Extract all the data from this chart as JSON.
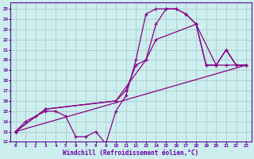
{
  "xlabel": "Windchill (Refroidissement éolien,°C)",
  "bg_color": "#cceeee",
  "line_color": "#880088",
  "grid_color": "#aacccc",
  "spine_color": "#6600aa",
  "xlim": [
    -0.5,
    23.5
  ],
  "ylim": [
    12,
    25.6
  ],
  "xticks": [
    0,
    1,
    2,
    3,
    4,
    5,
    6,
    7,
    8,
    9,
    10,
    11,
    12,
    13,
    14,
    15,
    16,
    17,
    18,
    19,
    20,
    21,
    22,
    23
  ],
  "yticks": [
    12,
    13,
    14,
    15,
    16,
    17,
    18,
    19,
    20,
    21,
    22,
    23,
    24,
    25
  ],
  "lines": [
    {
      "x": [
        0,
        1,
        2,
        3,
        4,
        5,
        6,
        7,
        8,
        9,
        10,
        11,
        12,
        13,
        14,
        15,
        16,
        17,
        18,
        19,
        20,
        21,
        22,
        23
      ],
      "y": [
        13,
        14,
        14.5,
        15,
        15,
        14.5,
        12.5,
        12.5,
        13,
        11.8,
        15,
        16.5,
        20,
        24.5,
        25,
        25,
        25,
        24.5,
        23.5,
        19.5,
        19.5,
        19.5,
        19.5,
        19.5
      ]
    },
    {
      "x": [
        0,
        3,
        10,
        11,
        12,
        13,
        14,
        15,
        16,
        17,
        18,
        19,
        20,
        21,
        22,
        23
      ],
      "y": [
        13,
        15.2,
        16,
        17,
        19.5,
        20,
        23.5,
        25,
        25,
        24.5,
        23.5,
        19.5,
        19.5,
        21,
        19.5,
        19.5
      ]
    },
    {
      "x": [
        0,
        3,
        10,
        13,
        14,
        18,
        20,
        21,
        22,
        23
      ],
      "y": [
        13,
        15.2,
        16,
        20,
        22,
        23.5,
        19.5,
        21,
        19.5,
        19.5
      ]
    },
    {
      "x": [
        0,
        23
      ],
      "y": [
        13,
        19.5
      ]
    }
  ]
}
